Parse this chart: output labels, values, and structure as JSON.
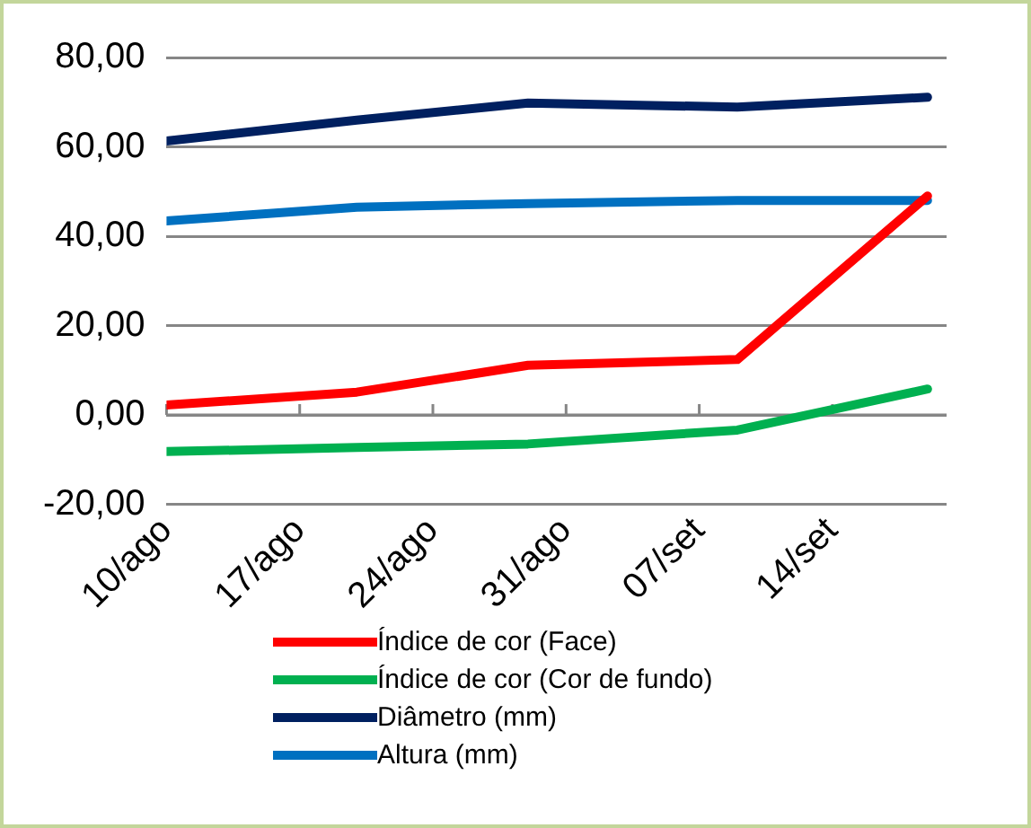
{
  "chart_data": {
    "type": "line",
    "x": [
      "--08-10",
      "--08-20",
      "--08-29",
      "--09-09",
      "--09-19"
    ],
    "series": [
      {
        "name": "Índice de cor (Face)",
        "color": "#ff0000",
        "values": [
          2.2,
          5.1,
          11.1,
          12.4,
          49
        ]
      },
      {
        "name": "Índice de cor (Cor de fundo)",
        "color": "#00b050",
        "values": [
          -8.2,
          -7.3,
          -6.5,
          -3.4,
          5.8
        ]
      },
      {
        "name": "Diâmetro (mm)",
        "color": "#002060",
        "values": [
          61.3,
          66,
          69.8,
          68.9,
          71.1
        ]
      },
      {
        "name": "Altura (mm)",
        "color": "#0070c0",
        "values": [
          43.4,
          46.5,
          47.3,
          48,
          48
        ]
      }
    ],
    "xlim": [
      "--08-10",
      "--09-20"
    ],
    "xticks": [
      {
        "value": "--08-10",
        "label": "10/ago"
      },
      {
        "value": "--08-17",
        "label": "17/ago"
      },
      {
        "value": "--08-24",
        "label": "24/ago"
      },
      {
        "value": "--08-31",
        "label": "31/ago"
      },
      {
        "value": "--09-07",
        "label": "07/set"
      },
      {
        "value": "--09-14",
        "label": "14/set"
      }
    ],
    "ylim": [
      -20,
      80
    ],
    "yticks": [
      {
        "value": -20,
        "label": "-20,00"
      },
      {
        "value": 0,
        "label": "0,00"
      },
      {
        "value": 20,
        "label": "20,00"
      },
      {
        "value": 40,
        "label": "40,00"
      },
      {
        "value": 60,
        "label": "60,00"
      },
      {
        "value": 80,
        "label": "80,00"
      }
    ],
    "grid": "y",
    "legend": "bottom",
    "marker": "none",
    "line_style": "solid"
  }
}
